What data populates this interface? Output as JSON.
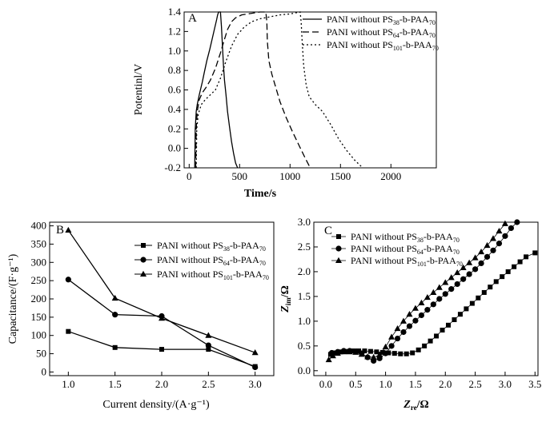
{
  "chart_data": [
    {
      "panel": "A",
      "type": "line",
      "xlabel": "Time/s",
      "ylabel": "Potentinl/V",
      "xlim": [
        -50,
        2450
      ],
      "ylim": [
        -0.2,
        1.4
      ],
      "x_ticks": [
        0,
        500,
        1000,
        1500,
        2000
      ],
      "y_ticks": [
        -0.2,
        0.0,
        0.2,
        0.4,
        0.6,
        0.8,
        1.0,
        1.2,
        1.4
      ],
      "legend_position": "top-right",
      "series": [
        {
          "name": "PANI without PS38-b-PAA70",
          "name_parts": {
            "prefix": "PANI without PS",
            "sub1": "38",
            "mid": "-b-PAA",
            "sub2": "70"
          },
          "line_style": "solid",
          "x": [
            55,
            60,
            70,
            80,
            100,
            130,
            150,
            175,
            205,
            245,
            272,
            282,
            292,
            300,
            310,
            320,
            330,
            340,
            350,
            365,
            380,
            400,
            420,
            440,
            460,
            480
          ],
          "y": [
            -0.2,
            0.2,
            0.38,
            0.45,
            0.55,
            0.68,
            0.78,
            0.9,
            1.02,
            1.2,
            1.32,
            1.37,
            1.4,
            1.4,
            1.4,
            1.25,
            1.05,
            0.85,
            0.7,
            0.55,
            0.38,
            0.22,
            0.07,
            -0.05,
            -0.15,
            -0.2
          ]
        },
        {
          "name": "PANI without PS64-b-PAA70",
          "name_parts": {
            "prefix": "PANI without PS",
            "sub1": "64",
            "mid": "-b-PAA",
            "sub2": "70"
          },
          "line_style": "dashed",
          "x": [
            65,
            70,
            80,
            100,
            130,
            170,
            210,
            260,
            310,
            350,
            380,
            420,
            460,
            520,
            580,
            640,
            700,
            760,
            770,
            775,
            790,
            820,
            860,
            900,
            960,
            1020,
            1080,
            1150,
            1200
          ],
          "y": [
            -0.2,
            0.2,
            0.38,
            0.5,
            0.57,
            0.63,
            0.7,
            0.82,
            0.98,
            1.12,
            1.22,
            1.3,
            1.34,
            1.37,
            1.38,
            1.39,
            1.4,
            1.4,
            1.3,
            1.1,
            0.9,
            0.76,
            0.62,
            0.48,
            0.32,
            0.18,
            0.05,
            -0.1,
            -0.2
          ]
        },
        {
          "name": "PANI without PS101-b-PAA70",
          "name_parts": {
            "prefix": "PANI without PS",
            "sub1": "101",
            "mid": "-b-PAA",
            "sub2": "70"
          },
          "line_style": "dotted",
          "x": [
            70,
            75,
            90,
            120,
            160,
            210,
            260,
            310,
            360,
            420,
            480,
            550,
            620,
            700,
            800,
            900,
            1000,
            1100,
            1110,
            1120,
            1135,
            1160,
            1190,
            1250,
            1320,
            1400,
            1480,
            1560,
            1640,
            1720
          ],
          "y": [
            -0.2,
            0.2,
            0.35,
            0.45,
            0.5,
            0.55,
            0.6,
            0.72,
            0.88,
            1.05,
            1.17,
            1.25,
            1.3,
            1.33,
            1.35,
            1.37,
            1.38,
            1.4,
            1.3,
            1.1,
            0.85,
            0.65,
            0.53,
            0.45,
            0.38,
            0.25,
            0.1,
            -0.02,
            -0.12,
            -0.2
          ]
        }
      ]
    },
    {
      "panel": "B",
      "type": "line",
      "xlabel": "Current density/(A·g⁻¹)",
      "ylabel": "Capacitance/(F·g⁻¹)",
      "xlim": [
        0.8,
        3.2
      ],
      "ylim": [
        -10,
        410
      ],
      "x_ticks": [
        1.0,
        1.5,
        2.0,
        2.5,
        3.0
      ],
      "y_ticks": [
        0,
        50,
        100,
        150,
        200,
        250,
        300,
        350,
        400
      ],
      "legend_position": "right",
      "x": [
        1.0,
        1.5,
        2.0,
        2.5,
        3.0
      ],
      "series": [
        {
          "name": "PANI without PS38-b-PAA70",
          "name_parts": {
            "prefix": "PANI without PS",
            "sub1": "38",
            "mid": "-b-PAA",
            "sub2": "70"
          },
          "marker": "square",
          "values": [
            111,
            67,
            62,
            62,
            15
          ]
        },
        {
          "name": "PANI without PS64-b-PAA70",
          "name_parts": {
            "prefix": "PANI without PS",
            "sub1": "64",
            "mid": "-b-PAA",
            "sub2": "70"
          },
          "marker": "circle",
          "values": [
            253,
            157,
            153,
            73,
            13
          ]
        },
        {
          "name": "PANI without PS101-b-PAA70",
          "name_parts": {
            "prefix": "PANI without PS",
            "sub1": "101",
            "mid": "-b-PAA",
            "sub2": "70"
          },
          "marker": "triangle",
          "values": [
            388,
            202,
            147,
            100,
            53
          ]
        }
      ]
    },
    {
      "panel": "C",
      "type": "scatter",
      "xlabel": "Zre/Ω",
      "xlabel_parts": {
        "main": "Z",
        "sub": "re",
        "unit": "/Ω"
      },
      "ylabel": "Zim/Ω",
      "ylabel_parts": {
        "main": "Z",
        "sub": "im",
        "unit": "/Ω"
      },
      "xlim": [
        -0.2,
        3.55
      ],
      "ylim": [
        -0.1,
        3.0
      ],
      "x_ticks": [
        0.0,
        0.5,
        1.0,
        1.5,
        2.0,
        2.5,
        3.0,
        3.5
      ],
      "y_ticks": [
        0.0,
        0.5,
        1.0,
        1.5,
        2.0,
        2.5,
        3.0
      ],
      "legend_position": "top-left",
      "series": [
        {
          "name": "PANI without PS38-b-PAA70",
          "name_parts": {
            "prefix": "PANI without PS",
            "sub1": "38",
            "mid": "-b-PAA",
            "sub2": "70"
          },
          "marker": "square",
          "x": [
            0.08,
            0.15,
            0.25,
            0.35,
            0.45,
            0.55,
            0.65,
            0.75,
            0.85,
            0.95,
            1.05,
            1.15,
            1.25,
            1.35,
            1.45,
            1.55,
            1.65,
            1.75,
            1.85,
            1.95,
            2.05,
            2.15,
            2.25,
            2.35,
            2.45,
            2.55,
            2.65,
            2.75,
            2.85,
            2.95,
            3.05,
            3.15,
            3.25,
            3.35,
            3.5
          ],
          "y": [
            0.33,
            0.36,
            0.38,
            0.39,
            0.4,
            0.4,
            0.4,
            0.39,
            0.38,
            0.37,
            0.36,
            0.35,
            0.34,
            0.34,
            0.36,
            0.42,
            0.5,
            0.6,
            0.7,
            0.82,
            0.92,
            1.03,
            1.14,
            1.25,
            1.36,
            1.47,
            1.58,
            1.69,
            1.8,
            1.9,
            2.0,
            2.1,
            2.2,
            2.3,
            2.38
          ]
        },
        {
          "name": "PANI without PS64-b-PAA70",
          "name_parts": {
            "prefix": "PANI without PS",
            "sub1": "64",
            "mid": "-b-PAA",
            "sub2": "70"
          },
          "marker": "circle",
          "x": [
            0.1,
            0.2,
            0.3,
            0.4,
            0.5,
            0.6,
            0.7,
            0.8,
            0.9,
            1.0,
            1.1,
            1.2,
            1.3,
            1.4,
            1.5,
            1.6,
            1.7,
            1.8,
            1.9,
            2.0,
            2.1,
            2.2,
            2.3,
            2.4,
            2.5,
            2.6,
            2.7,
            2.8,
            2.9,
            3.0,
            3.1,
            3.2
          ],
          "y": [
            0.36,
            0.38,
            0.4,
            0.4,
            0.39,
            0.35,
            0.27,
            0.2,
            0.25,
            0.35,
            0.5,
            0.65,
            0.78,
            0.9,
            1.01,
            1.12,
            1.23,
            1.34,
            1.45,
            1.55,
            1.65,
            1.75,
            1.85,
            1.95,
            2.05,
            2.17,
            2.3,
            2.43,
            2.57,
            2.72,
            2.88,
            3.0
          ]
        },
        {
          "name": "PANI without PS101-b-PAA70",
          "name_parts": {
            "prefix": "PANI without PS",
            "sub1": "101",
            "mid": "-b-PAA",
            "sub2": "70"
          },
          "marker": "triangle",
          "x": [
            0.05,
            0.12,
            0.2,
            0.3,
            0.4,
            0.5,
            0.6,
            0.7,
            0.8,
            0.9,
            1.0,
            1.1,
            1.2,
            1.3,
            1.4,
            1.5,
            1.6,
            1.7,
            1.8,
            1.9,
            2.0,
            2.1,
            2.2,
            2.3,
            2.4,
            2.5,
            2.6,
            2.7,
            2.8,
            2.9,
            3.0
          ],
          "y": [
            0.22,
            0.3,
            0.35,
            0.38,
            0.38,
            0.37,
            0.33,
            0.28,
            0.27,
            0.32,
            0.48,
            0.68,
            0.85,
            1.0,
            1.14,
            1.26,
            1.37,
            1.48,
            1.58,
            1.68,
            1.78,
            1.88,
            1.98,
            2.08,
            2.18,
            2.28,
            2.4,
            2.53,
            2.67,
            2.82,
            2.97
          ]
        }
      ]
    }
  ]
}
